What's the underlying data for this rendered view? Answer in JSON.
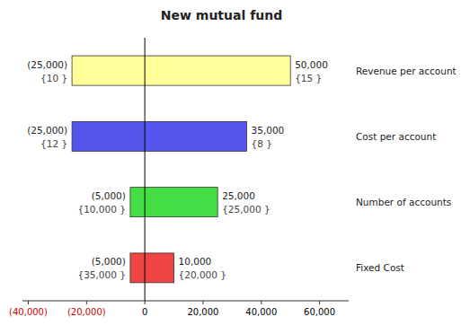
{
  "chart_data": {
    "type": "bar",
    "orientation": "horizontal",
    "title": "New mutual fund",
    "categories": [
      "Revenue per account",
      "Cost per account",
      "Number of accounts",
      "Fixed Cost"
    ],
    "series": [
      {
        "values": [
          -25000,
          -25000,
          -5000,
          -5000
        ],
        "value_labels": [
          "(25,000)",
          "(25,000)",
          "(5,000)",
          "(5,000)"
        ],
        "input_labels": [
          "{10 }",
          "{12 }",
          "{10,000 }",
          "{35,000 }"
        ]
      },
      {
        "values": [
          50000,
          35000,
          25000,
          10000
        ],
        "value_labels": [
          "50,000",
          "35,000",
          "25,000",
          "10,000"
        ],
        "input_labels": [
          "{15 }",
          "{8 }",
          "{25,000 }",
          "{20,000 }"
        ]
      }
    ],
    "colors": [
      "#ffff99",
      "#5555ee",
      "#44dd44",
      "#ee4444"
    ],
    "xlim": [
      -42000,
      70000
    ],
    "xticks": [
      {
        "value": -40000,
        "label": "(40,000)"
      },
      {
        "value": -20000,
        "label": "(20,000)"
      },
      0,
      {
        "value": 20000,
        "label": "20,000"
      },
      {
        "value": 40000,
        "label": "40,000"
      },
      {
        "value": 60000,
        "label": "60,000"
      }
    ],
    "xtick_colors": [
      "#cc0000",
      "#cc0000",
      "#000000",
      "#000000",
      "#000000",
      "#000000"
    ],
    "grid": false,
    "data_labels": true
  }
}
